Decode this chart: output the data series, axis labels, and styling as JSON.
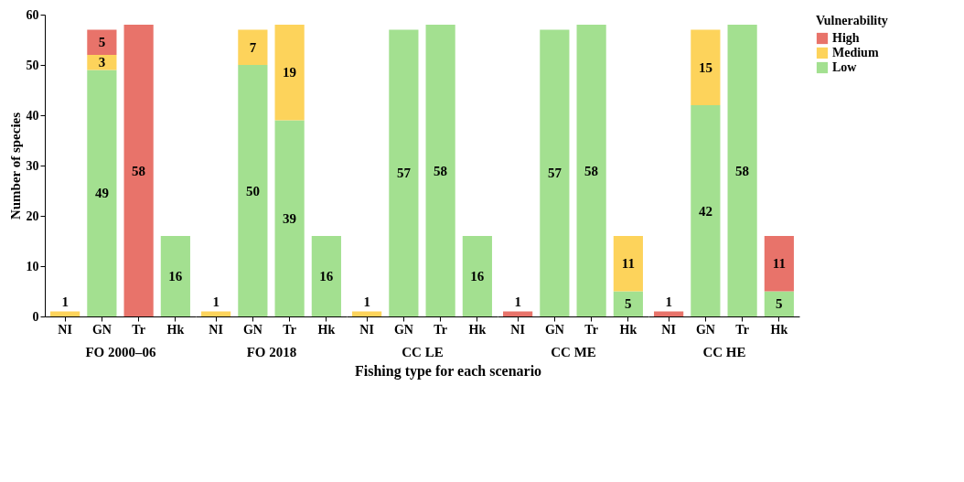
{
  "chart_data": [
    {
      "type": "bar",
      "stacked": true,
      "data_labels": true,
      "categories": [
        "NI",
        "GN",
        "Tr",
        "Hk"
      ],
      "xlabel": "FO 2000–06",
      "ylabel": "Number of species",
      "ylim": [
        0,
        60
      ],
      "yticks": [
        0,
        10,
        20,
        30,
        40,
        50,
        60
      ],
      "grid": false,
      "legend": "right",
      "legend_title": "Vulnerability",
      "annotations": [
        "Fishing type for each scenario"
      ],
      "series": [
        {
          "name": "Low",
          "color": "#a3e090",
          "values": [
            null,
            49,
            null,
            16
          ]
        },
        {
          "name": "Medium",
          "color": "#fdd35b",
          "values": [
            1,
            3,
            null,
            null
          ]
        },
        {
          "name": "High",
          "color": "#e8736a",
          "values": [
            null,
            5,
            58,
            null
          ]
        }
      ]
    },
    {
      "type": "bar",
      "stacked": true,
      "data_labels": true,
      "categories": [
        "NI",
        "GN",
        "Tr",
        "Hk"
      ],
      "xlabel": "FO 2018",
      "ylim": [
        0,
        60
      ],
      "yticks": [
        0,
        10,
        20,
        30,
        40,
        50,
        60
      ],
      "grid": false,
      "tick_labels": "x",
      "series": [
        {
          "color": "#a3e090",
          "values": [
            null,
            50,
            39,
            16
          ]
        },
        {
          "color": "#fdd35b",
          "values": [
            1,
            7,
            19,
            null
          ]
        },
        {
          "color": "#e8736a",
          "values": [
            null,
            null,
            null,
            null
          ]
        }
      ]
    },
    {
      "type": "bar",
      "stacked": true,
      "data_labels": true,
      "categories": [
        "NI",
        "GN",
        "Tr",
        "Hk"
      ],
      "xlabel": "CC LE",
      "ylim": [
        0,
        60
      ],
      "yticks": [
        0,
        10,
        20,
        30,
        40,
        50,
        60
      ],
      "grid": false,
      "tick_labels": "x",
      "series": [
        {
          "color": "#a3e090",
          "values": [
            null,
            57,
            58,
            16
          ]
        },
        {
          "color": "#fdd35b",
          "values": [
            1,
            null,
            null,
            null
          ]
        },
        {
          "color": "#e8736a",
          "values": [
            null,
            null,
            null,
            null
          ]
        }
      ]
    },
    {
      "type": "bar",
      "stacked": true,
      "data_labels": true,
      "categories": [
        "NI",
        "GN",
        "Tr",
        "Hk"
      ],
      "xlabel": "CC ME",
      "ylim": [
        0,
        60
      ],
      "yticks": [
        0,
        10,
        20,
        30,
        40,
        50,
        60
      ],
      "grid": false,
      "tick_labels": "x",
      "series": [
        {
          "color": "#a3e090",
          "values": [
            null,
            57,
            58,
            5
          ]
        },
        {
          "color": "#fdd35b",
          "values": [
            null,
            null,
            null,
            11
          ]
        },
        {
          "color": "#e8736a",
          "values": [
            1,
            null,
            null,
            null
          ]
        }
      ]
    },
    {
      "type": "bar",
      "stacked": true,
      "data_labels": true,
      "categories": [
        "NI",
        "GN",
        "Tr",
        "Hk"
      ],
      "xlabel": "CC HE",
      "ylim": [
        0,
        60
      ],
      "yticks": [
        0,
        10,
        20,
        30,
        40,
        50,
        60
      ],
      "grid": false,
      "tick_labels": "x",
      "series": [
        {
          "color": "#a3e090",
          "values": [
            null,
            42,
            58,
            5
          ]
        },
        {
          "color": "#fdd35b",
          "values": [
            null,
            15,
            null,
            null
          ]
        },
        {
          "color": "#e8736a",
          "values": [
            1,
            null,
            null,
            11
          ]
        }
      ]
    }
  ]
}
